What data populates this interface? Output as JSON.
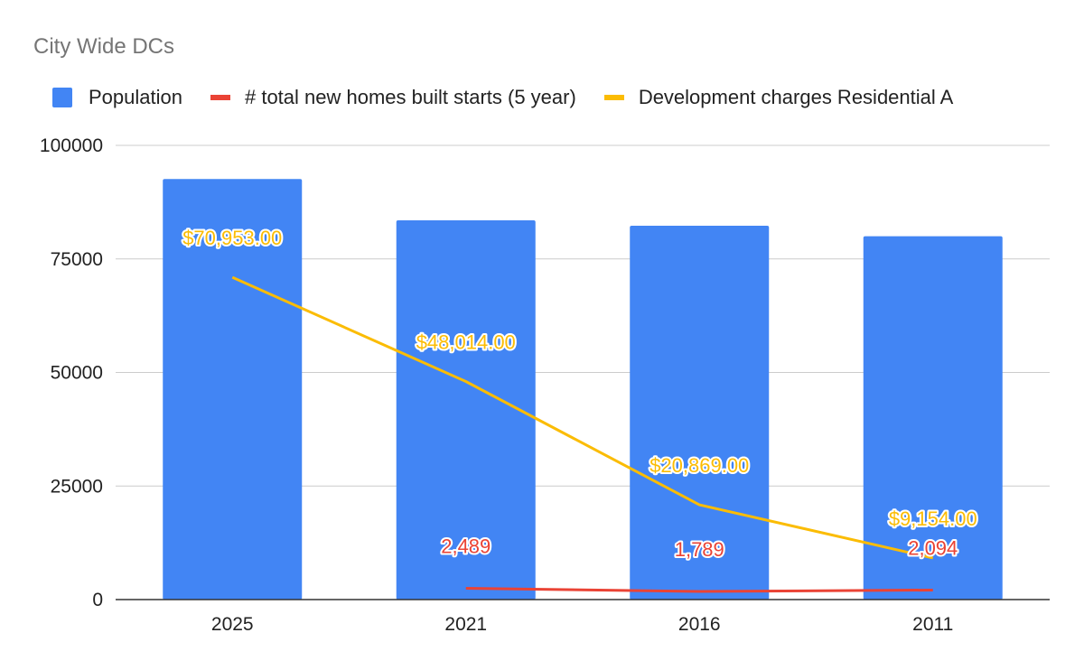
{
  "chart_data": {
    "type": "bar",
    "title": "City Wide DCs",
    "categories": [
      "2025",
      "2021",
      "2016",
      "2011"
    ],
    "ylim": [
      0,
      100000
    ],
    "yticks": [
      "0",
      "25000",
      "50000",
      "75000",
      "100000"
    ],
    "grid": true,
    "legend_position": "top",
    "series": [
      {
        "name": "Population",
        "kind": "bar",
        "color": "#4285f4",
        "values": [
          92600,
          83500,
          82300,
          80000
        ],
        "labels": [
          null,
          null,
          null,
          null
        ]
      },
      {
        "name": "# total new homes built starts (5 year)",
        "kind": "line",
        "color": "#ea4335",
        "values": [
          null,
          2489,
          1789,
          2094
        ],
        "labels": [
          null,
          "2,489",
          "1,789",
          "2,094"
        ]
      },
      {
        "name": "Development charges Residential A",
        "kind": "line",
        "color": "#fbbc04",
        "values": [
          70953,
          48014,
          20869,
          9154
        ],
        "labels": [
          "$70,953.00",
          "$48,014.00",
          "$20,869.00",
          "$9,154.00"
        ]
      }
    ]
  }
}
